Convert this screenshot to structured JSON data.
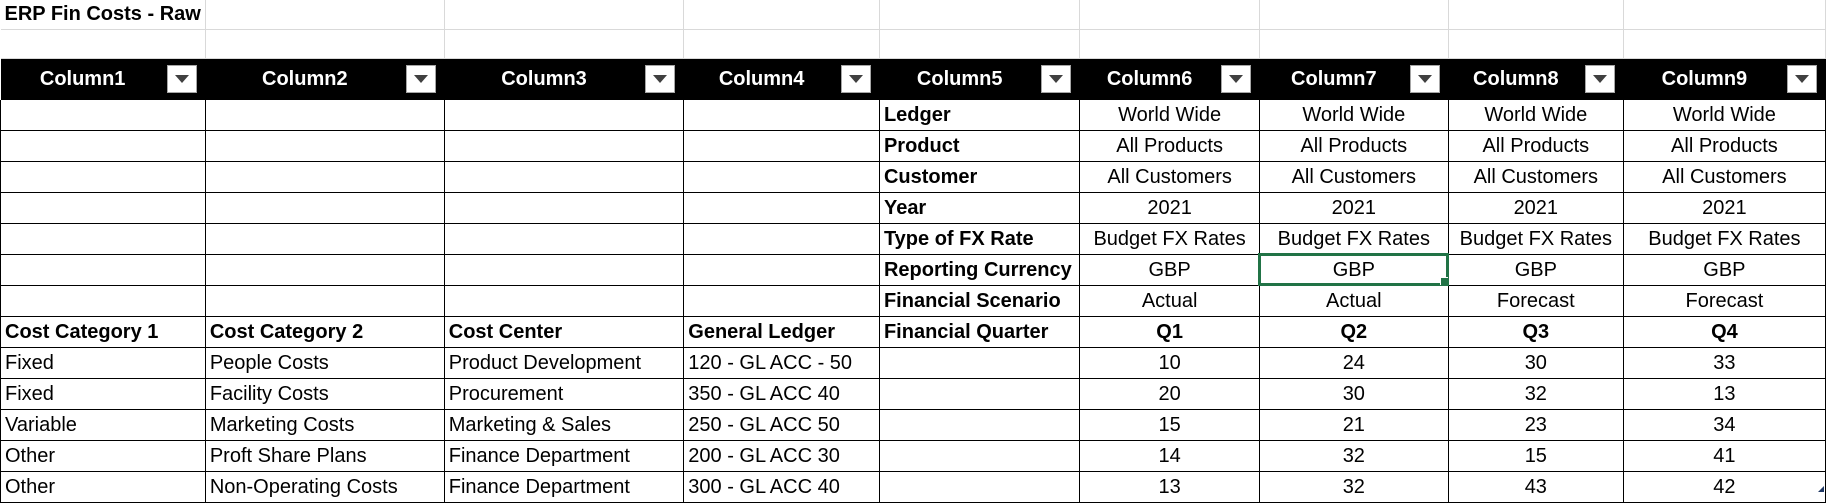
{
  "sheet": {
    "title": "ERP Fin Costs - Raw",
    "headers": [
      "Column1",
      "Column2",
      "Column3",
      "Column4",
      "Column5",
      "Column6",
      "Column7",
      "Column8",
      "Column9"
    ],
    "meta_rows": [
      {
        "label": "Ledger",
        "values": [
          "World Wide",
          "World Wide",
          "World Wide",
          "World Wide"
        ]
      },
      {
        "label": "Product",
        "values": [
          "All Products",
          "All Products",
          "All Products",
          "All Products"
        ]
      },
      {
        "label": "Customer",
        "values": [
          "All Customers",
          "All Customers",
          "All Customers",
          "All Customers"
        ]
      },
      {
        "label": "Year",
        "values": [
          "2021",
          "2021",
          "2021",
          "2021"
        ]
      },
      {
        "label": "Type of FX Rate",
        "values": [
          "Budget FX Rates",
          "Budget FX Rates",
          "Budget FX Rates",
          "Budget FX Rates"
        ]
      },
      {
        "label": "Reporting Currency",
        "values": [
          "GBP",
          "GBP",
          "GBP",
          "GBP"
        ]
      },
      {
        "label": "Financial Scenario",
        "values": [
          "Actual",
          "Actual",
          "Forecast",
          "Forecast"
        ]
      }
    ],
    "column_header_row": {
      "cost_category_1": "Cost Category 1",
      "cost_category_2": "Cost Category 2",
      "cost_center": "Cost Center",
      "general_ledger": "General Ledger",
      "financial_quarter": "Financial Quarter",
      "quarters": [
        "Q1",
        "Q2",
        "Q3",
        "Q4"
      ]
    },
    "data_rows": [
      {
        "cat1": "Fixed",
        "cat2": "People Costs",
        "center": "Product Development",
        "gl": "120 - GL ACC - 50",
        "values": [
          "10",
          "24",
          "30",
          "33"
        ]
      },
      {
        "cat1": "Fixed",
        "cat2": "Facility Costs",
        "center": "Procurement",
        "gl": "350 - GL ACC 40",
        "values": [
          "20",
          "30",
          "32",
          "13"
        ]
      },
      {
        "cat1": "Variable",
        "cat2": "Marketing Costs",
        "center": "Marketing & Sales",
        "gl": "250 - GL ACC 50",
        "values": [
          "15",
          "21",
          "23",
          "34"
        ]
      },
      {
        "cat1": "Other",
        "cat2": "Proft Share Plans",
        "center": "Finance Department",
        "gl": "200 - GL ACC 30",
        "values": [
          "14",
          "32",
          "15",
          "41"
        ]
      },
      {
        "cat1": "Other",
        "cat2": "Non-Operating Costs",
        "center": "Finance Department",
        "gl": "300 - GL ACC 40",
        "values": [
          "13",
          "32",
          "43",
          "42"
        ]
      }
    ],
    "selected_cell": "Reporting Currency / Column7",
    "colors": {
      "header_bg": "#000000",
      "header_text": "#ffffff",
      "selection": "#217346"
    }
  }
}
